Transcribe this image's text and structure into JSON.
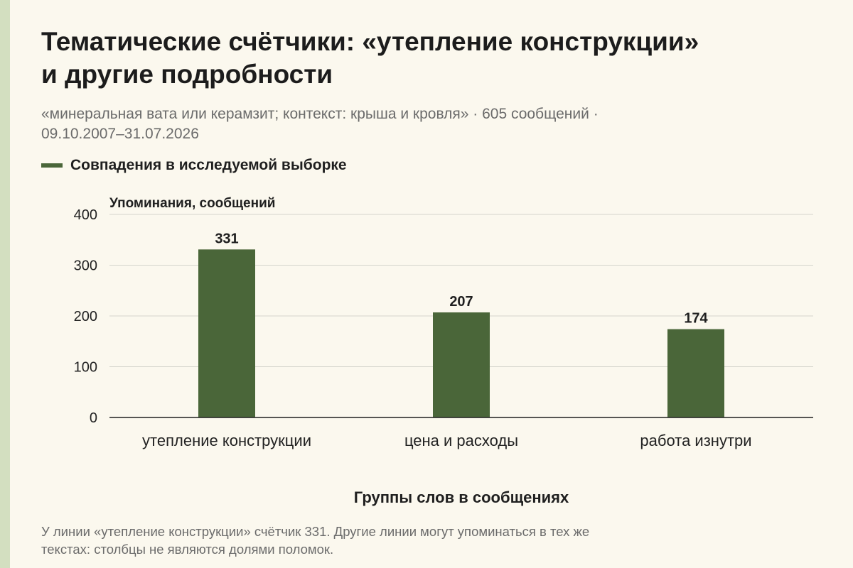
{
  "header": {
    "title_line1": "Тематические счётчики: «утепление конструкции»",
    "title_line2": "и другие подробности",
    "subtitle_line1": "«минеральная вата или керамзит; контекст: крыша и кровля» · 605 сообщений ·",
    "subtitle_line2": "09.10.2007–31.07.2026"
  },
  "legend": {
    "label": "Совпадения в исследуемой выборке",
    "color": "#4a6639"
  },
  "chart_data": {
    "type": "bar",
    "categories": [
      "утепление конструкции",
      "цена и расходы",
      "работа изнутри"
    ],
    "values": [
      331,
      207,
      174
    ],
    "series": [
      {
        "name": "Совпадения в исследуемой выборке",
        "values": [
          331,
          207,
          174
        ],
        "color": "#4a6639"
      }
    ],
    "title": "Тематические счётчики: «утепление конструкции» и другие подробности",
    "xlabel": "Группы слов в сообщениях",
    "ylabel": "Упоминания, сообщений",
    "ylim": [
      0,
      400
    ],
    "yticks": [
      0,
      100,
      200,
      300,
      400
    ],
    "grid": true,
    "legend_position": "top-left",
    "data_labels": true
  },
  "note": {
    "line1": "У линии «утепление конструкции» счётчик 331. Другие линии могут упоминаться в тех же",
    "line2": "текстах: столбцы не являются долями поломок."
  }
}
